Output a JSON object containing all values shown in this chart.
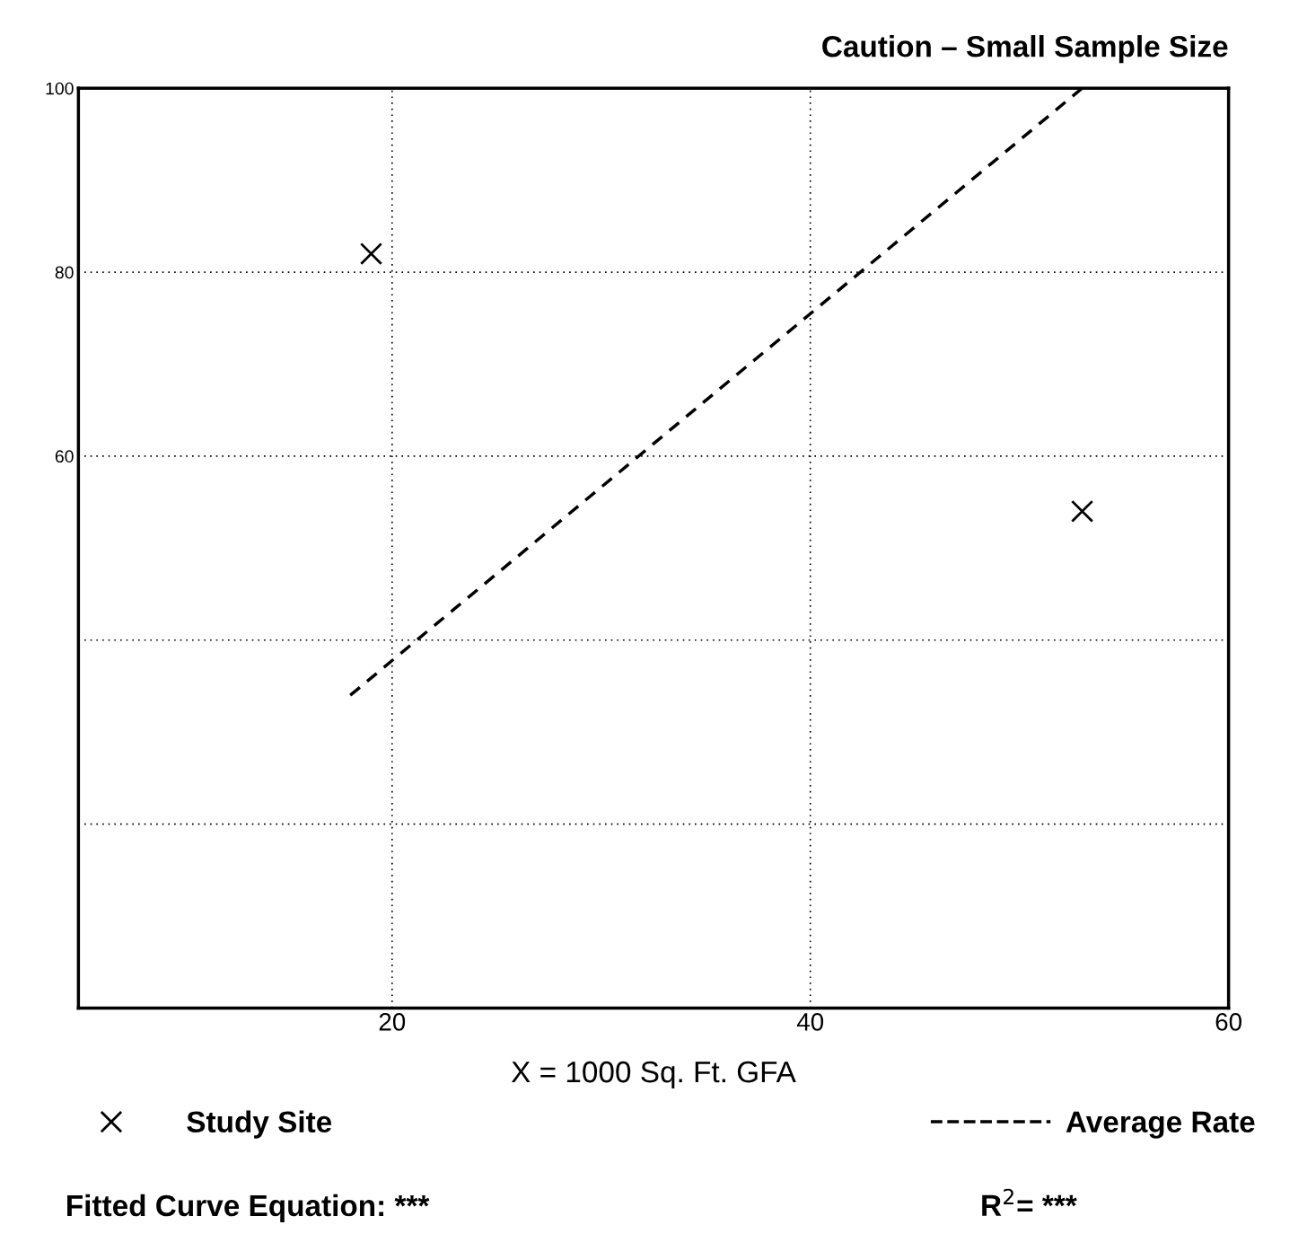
{
  "chart_data": {
    "type": "scatter",
    "xlabel": "X = 1000 Sq. Ft. GFA",
    "xlim": [
      5,
      60
    ],
    "xticks": [
      20,
      40,
      60
    ],
    "ylim": [
      0,
      100
    ],
    "yticks": [
      {
        "value": 0,
        "label": null
      },
      {
        "value": 20,
        "label": null
      },
      {
        "value": 40,
        "label": null
      },
      60,
      80,
      100
    ],
    "grid": true,
    "legend": "bottom",
    "series": [
      {
        "name": "Study Site",
        "color": "#000000",
        "marker": "cross",
        "x": [
          19,
          53
        ],
        "values": [
          82,
          54
        ]
      },
      {
        "name": "Average Rate",
        "type": "line",
        "color": "#000000",
        "line_style": "dashed",
        "marker": "none",
        "x": [
          18,
          53
        ],
        "values": [
          34,
          100
        ]
      }
    ],
    "annotations": [
      "Caution – Small Sample Size",
      "Fitted Curve Equation: ***",
      "R$^{2}$= ***"
    ]
  }
}
